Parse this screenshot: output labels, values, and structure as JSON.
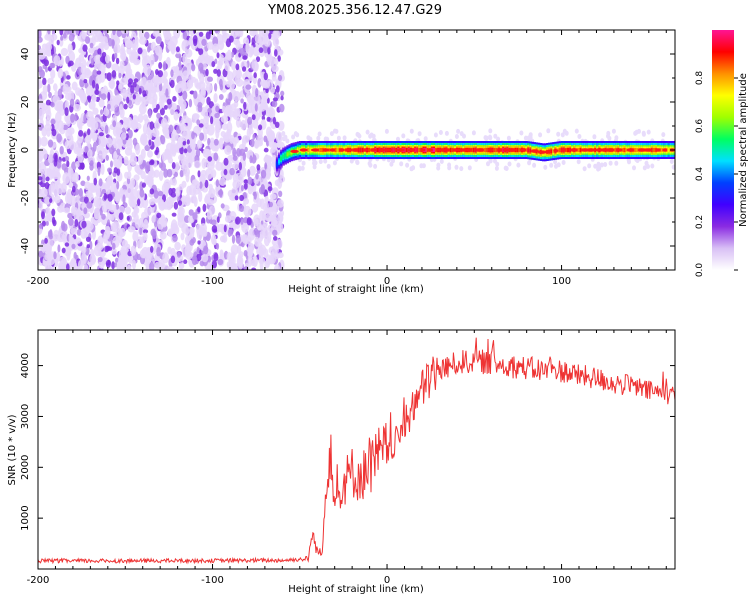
{
  "title": "YM08.2025.356.12.47.G29",
  "chart_data": [
    {
      "type": "heatmap",
      "title": "YM08.2025.356.12.47.G29",
      "xlabel": "Height of straight line (km)",
      "ylabel": "Frequency (Hz)",
      "xlim": [
        -200,
        165
      ],
      "ylim": [
        -50,
        50
      ],
      "x_ticks": [
        -200,
        -100,
        0,
        100
      ],
      "y_ticks": [
        -40,
        -20,
        0,
        20,
        40
      ],
      "colorbar": {
        "label": "Normalized spectral amplitude",
        "range": [
          0,
          1
        ],
        "ticks": [
          "0.0",
          "0.2",
          "0.4",
          "0.6",
          "0.8"
        ],
        "colormap": [
          "#ffffff",
          "#d8bff5",
          "#8a2be2",
          "#4000ff",
          "#0040ff",
          "#00e0ff",
          "#00ff60",
          "#a0ff00",
          "#ffff00",
          "#ff9000",
          "#ff0000",
          "#ff1493"
        ]
      },
      "noise_region": {
        "x_range": [
          -200,
          -60
        ],
        "y_range": [
          -50,
          50
        ],
        "level": "0.1-0.3"
      },
      "signal_track": {
        "x": [
          -63,
          -60,
          -55,
          -50,
          -45,
          -40,
          -35,
          -30,
          -25,
          -20,
          -15,
          -10,
          -5,
          0,
          10,
          20,
          30,
          40,
          50,
          60,
          70,
          80,
          90,
          100,
          110,
          120,
          130,
          140,
          150,
          160,
          165
        ],
        "frequency": [
          -6,
          -3,
          -1,
          0,
          0,
          0,
          0,
          0,
          0,
          0,
          0,
          0,
          0,
          0,
          0,
          0,
          0,
          0,
          0,
          0,
          0,
          0,
          -1,
          0,
          0,
          0,
          0,
          0,
          0,
          0,
          0
        ],
        "peak_amplitude": [
          0.4,
          0.6,
          0.7,
          0.75,
          0.8,
          0.85,
          0.9,
          0.9,
          0.9,
          0.95,
          0.95,
          0.95,
          1.0,
          1.0,
          1.0,
          1.0,
          1.0,
          0.95,
          0.95,
          1.0,
          1.0,
          0.95,
          0.9,
          0.95,
          0.95,
          0.9,
          0.95,
          0.9,
          0.9,
          0.85,
          0.8
        ]
      }
    },
    {
      "type": "line",
      "xlabel": "Height of straight line (km)",
      "ylabel": "SNR (10 * v/v)",
      "xlim": [
        -200,
        165
      ],
      "ylim": [
        0,
        4700
      ],
      "x_ticks": [
        -200,
        -100,
        0,
        100
      ],
      "y_ticks": [
        1000,
        2000,
        3000,
        4000
      ],
      "color": "#ee3333",
      "series": [
        {
          "x": [
            -200,
            -150,
            -100,
            -60,
            -45,
            -43,
            -40,
            -37,
            -35,
            -32,
            -30,
            -28,
            -25,
            -20,
            -15,
            -10,
            -5,
            0,
            5,
            10,
            15,
            20,
            25,
            30,
            40,
            50,
            60,
            70,
            80,
            90,
            100,
            110,
            120,
            130,
            140,
            150,
            160,
            165
          ],
          "y": [
            160,
            160,
            165,
            170,
            200,
            700,
            350,
            300,
            1800,
            2500,
            1300,
            1400,
            1700,
            1900,
            1800,
            2000,
            2200,
            2300,
            2500,
            2800,
            3200,
            3500,
            3800,
            3900,
            4050,
            4100,
            4050,
            4000,
            3950,
            3900,
            3900,
            3800,
            3750,
            3650,
            3600,
            3500,
            3450,
            3400
          ]
        }
      ]
    }
  ]
}
